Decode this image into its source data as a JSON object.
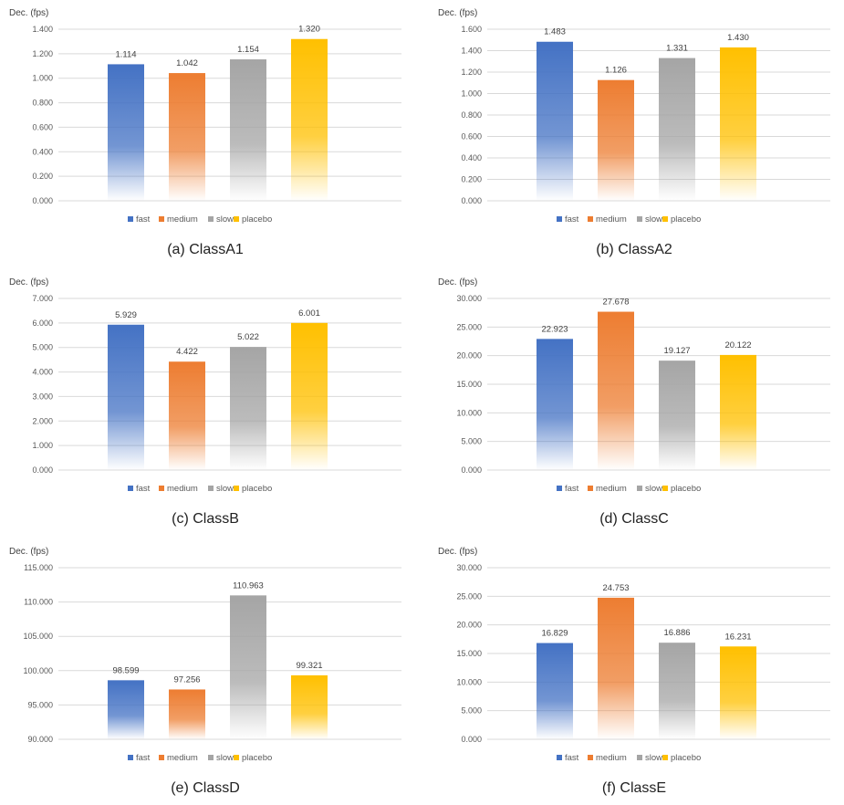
{
  "colors": {
    "fast": "#4472c4",
    "medium": "#ed7d31",
    "slow": "#a5a5a5",
    "placebo": "#ffc000"
  },
  "chart_data": [
    {
      "type": "bar",
      "caption": "(a)  ClassA1",
      "ylabel": "Dec. (fps)",
      "categories": [
        "fast",
        "medium",
        "slow",
        "placebo"
      ],
      "values": [
        1.114,
        1.042,
        1.154,
        1.32
      ],
      "value_labels": [
        "1.114",
        "1.042",
        "1.154",
        "1.320"
      ],
      "yticks": [
        "0.000",
        "0.200",
        "0.400",
        "0.600",
        "0.800",
        "1.000",
        "1.200",
        "1.400"
      ],
      "ylim": [
        0,
        1.4
      ],
      "legend": [
        "fast",
        "medium",
        "slow",
        "placebo"
      ],
      "legend_position": "bottom",
      "grid": true
    },
    {
      "type": "bar",
      "caption": "(b)  ClassA2",
      "ylabel": "Dec. (fps)",
      "categories": [
        "fast",
        "medium",
        "slow",
        "placebo"
      ],
      "values": [
        1.483,
        1.126,
        1.331,
        1.43
      ],
      "value_labels": [
        "1.483",
        "1.126",
        "1.331",
        "1.430"
      ],
      "yticks": [
        "0.000",
        "0.200",
        "0.400",
        "0.600",
        "0.800",
        "1.000",
        "1.200",
        "1.400",
        "1.600"
      ],
      "ylim": [
        0,
        1.6
      ],
      "legend": [
        "fast",
        "medium",
        "slow",
        "placebo"
      ],
      "legend_position": "bottom",
      "grid": true
    },
    {
      "type": "bar",
      "caption": "(c)  ClassB",
      "ylabel": "Dec. (fps)",
      "categories": [
        "fast",
        "medium",
        "slow",
        "placebo"
      ],
      "values": [
        5.929,
        4.422,
        5.022,
        6.001
      ],
      "value_labels": [
        "5.929",
        "4.422",
        "5.022",
        "6.001"
      ],
      "yticks": [
        "0.000",
        "1.000",
        "2.000",
        "3.000",
        "4.000",
        "5.000",
        "6.000",
        "7.000"
      ],
      "ylim": [
        0,
        7
      ],
      "legend": [
        "fast",
        "medium",
        "slow",
        "placebo"
      ],
      "legend_position": "bottom",
      "grid": true
    },
    {
      "type": "bar",
      "caption": "(d)  ClassC",
      "ylabel": "Dec. (fps)",
      "categories": [
        "fast",
        "medium",
        "slow",
        "placebo"
      ],
      "values": [
        22.923,
        27.678,
        19.127,
        20.122
      ],
      "value_labels": [
        "22.923",
        "27.678",
        "19.127",
        "20.122"
      ],
      "yticks": [
        "0.000",
        "5.000",
        "10.000",
        "15.000",
        "20.000",
        "25.000",
        "30.000"
      ],
      "ylim": [
        0,
        30
      ],
      "legend": [
        "fast",
        "medium",
        "slow",
        "placebo"
      ],
      "legend_position": "bottom",
      "grid": true
    },
    {
      "type": "bar",
      "caption": "(e)  ClassD",
      "ylabel": "Dec. (fps)",
      "categories": [
        "fast",
        "medium",
        "slow",
        "placebo"
      ],
      "values": [
        98.599,
        97.256,
        110.963,
        99.321
      ],
      "value_labels": [
        "98.599",
        "97.256",
        "110.963",
        "99.321"
      ],
      "yticks": [
        "90.000",
        "95.000",
        "100.000",
        "105.000",
        "110.000",
        "115.000"
      ],
      "ylim": [
        90,
        115
      ],
      "legend": [
        "fast",
        "medium",
        "slow",
        "placebo"
      ],
      "legend_position": "bottom",
      "grid": true
    },
    {
      "type": "bar",
      "caption": "(f)  ClassE",
      "ylabel": "Dec. (fps)",
      "categories": [
        "fast",
        "medium",
        "slow",
        "placebo"
      ],
      "values": [
        16.829,
        24.753,
        16.886,
        16.231
      ],
      "value_labels": [
        "16.829",
        "24.753",
        "16.886",
        "16.231"
      ],
      "yticks": [
        "0.000",
        "5.000",
        "10.000",
        "15.000",
        "20.000",
        "25.000",
        "30.000"
      ],
      "ylim": [
        0,
        30
      ],
      "legend": [
        "fast",
        "medium",
        "slow",
        "placebo"
      ],
      "legend_position": "bottom",
      "grid": true
    }
  ]
}
